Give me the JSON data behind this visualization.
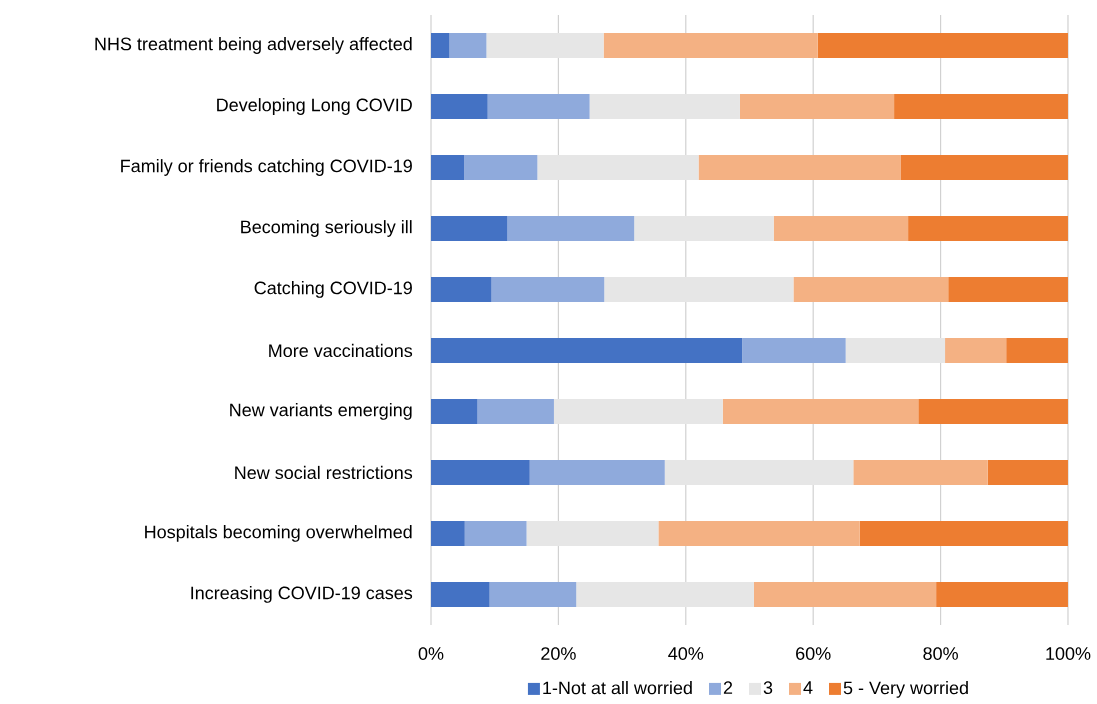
{
  "chart_data": {
    "type": "bar",
    "orientation": "horizontal",
    "stacked": true,
    "categories": [
      "NHS treatment being adversely affected",
      "Developing Long COVID",
      "Family or friends catching COVID-19",
      "Becoming seriously ill",
      "Catching COVID-19",
      "More vaccinations",
      "New variants emerging",
      "New social restrictions",
      "Hospitals becoming overwhelmed",
      "Increasing COVID-19 cases"
    ],
    "series": [
      {
        "name": "1-Not at all worried",
        "color": "#4472c4",
        "values": [
          2.9,
          8.9,
          5.2,
          12.0,
          9.5,
          48.9,
          7.3,
          15.5,
          5.3,
          9.2
        ]
      },
      {
        "name": "2",
        "color": "#8faadc",
        "values": [
          5.8,
          16.0,
          11.5,
          19.9,
          17.7,
          16.2,
          12.0,
          21.2,
          9.7,
          13.6
        ]
      },
      {
        "name": "3",
        "color": "#e6e6e6",
        "values": [
          18.4,
          23.6,
          25.3,
          21.9,
          29.7,
          15.6,
          26.5,
          29.6,
          20.7,
          27.9
        ]
      },
      {
        "name": "4",
        "color": "#f4b183",
        "values": [
          33.6,
          24.2,
          31.7,
          21.1,
          24.3,
          9.6,
          30.7,
          21.1,
          31.6,
          28.6
        ]
      },
      {
        "name": "5 - Very worried",
        "color": "#ed7d31",
        "values": [
          39.3,
          27.3,
          26.3,
          25.1,
          18.8,
          9.7,
          23.5,
          12.6,
          32.7,
          20.7
        ]
      }
    ],
    "xlim": [
      0,
      100
    ],
    "xticks": [
      {
        "value": 0,
        "label": "0%"
      },
      {
        "value": 20,
        "label": "20%"
      },
      {
        "value": 40,
        "label": "40%"
      },
      {
        "value": 60,
        "label": "60%"
      },
      {
        "value": 80,
        "label": "80%"
      },
      {
        "value": 100,
        "label": "100%"
      }
    ],
    "grid": "x",
    "legend": "bottom"
  }
}
